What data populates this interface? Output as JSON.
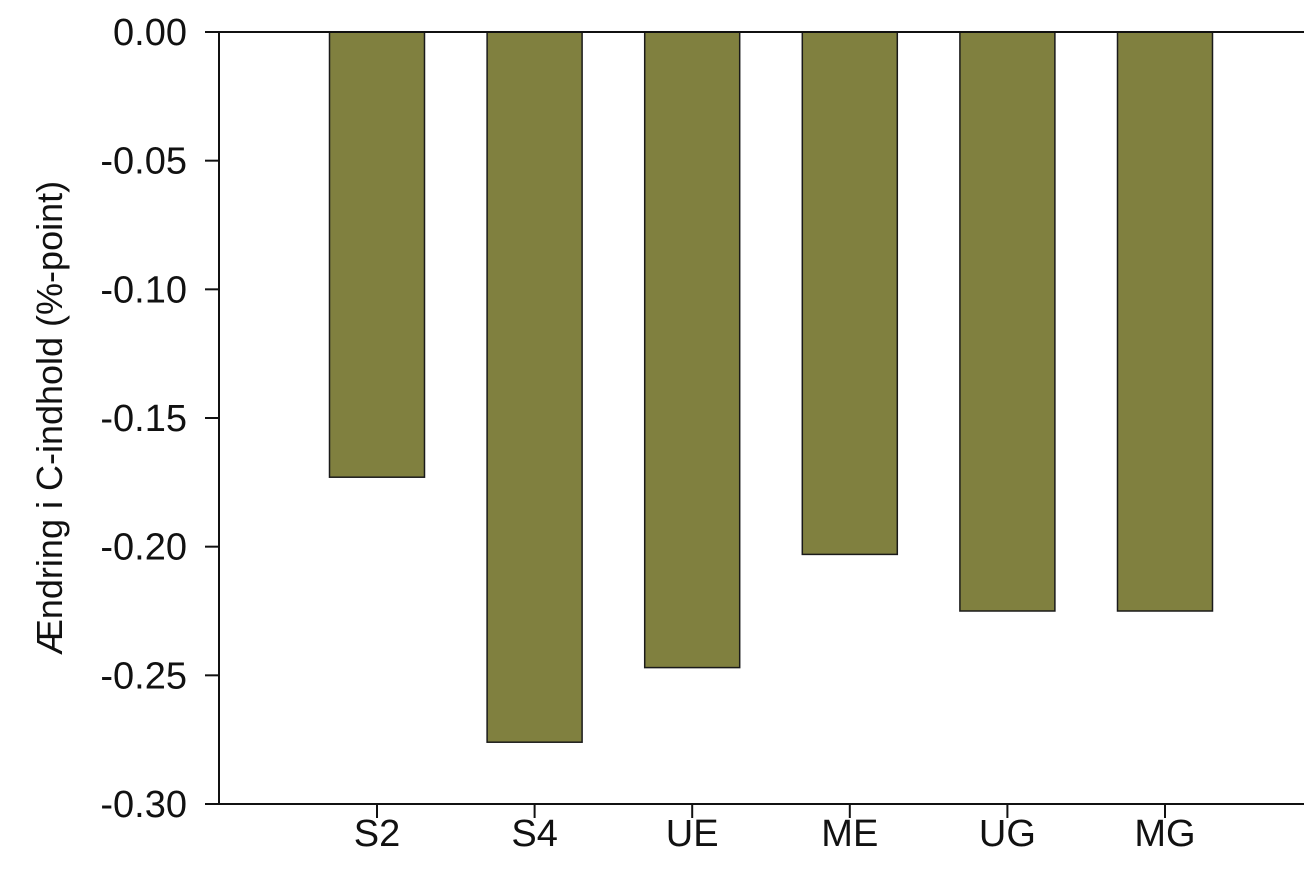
{
  "chart_data": {
    "type": "bar",
    "title": "",
    "xlabel": "",
    "ylabel": "Ændring i C-indhold (%-point)",
    "categories": [
      "S2",
      "S4",
      "UE",
      "ME",
      "UG",
      "MG"
    ],
    "values": [
      -0.173,
      -0.276,
      -0.247,
      -0.203,
      -0.225,
      -0.225
    ],
    "ylim": [
      -0.3,
      0.0
    ],
    "yticks": [
      "0.00",
      "-0.05",
      "-0.10",
      "-0.15",
      "-0.20",
      "-0.25",
      "-0.30"
    ],
    "ytick_values": [
      0.0,
      -0.05,
      -0.1,
      -0.15,
      -0.2,
      -0.25,
      -0.3
    ],
    "grid": false,
    "bar_color": "#80803f",
    "bar_edge_color": "#1a1a1a"
  }
}
